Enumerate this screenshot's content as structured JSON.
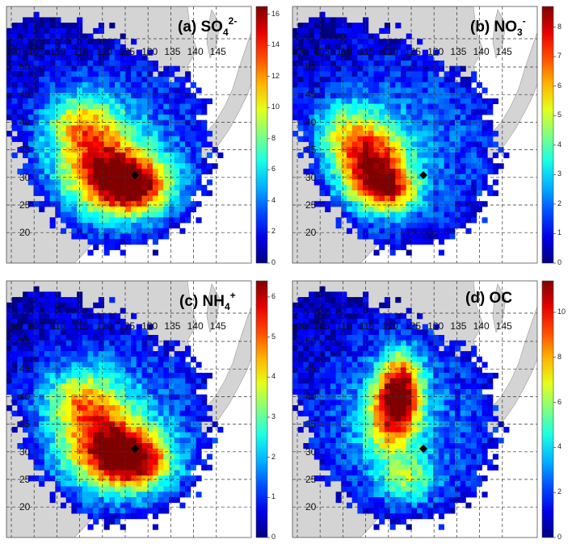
{
  "figure": {
    "longitudes": [
      "100",
      "105",
      "110",
      "115",
      "120",
      "125",
      "130",
      "135",
      "140",
      "145"
    ],
    "latitudes": [
      "50",
      "45",
      "40",
      "35",
      "30",
      "25",
      "20"
    ],
    "site_marker": "black-dot"
  },
  "panels": [
    {
      "id": "a",
      "prefix": "(a) ",
      "species": "SO",
      "sub": "4",
      "sup": "2-",
      "colorbar_ticks": [
        "16",
        "14",
        "12",
        "10",
        "8",
        "6",
        "4",
        "2",
        "0"
      ],
      "colorbar_max": 16.5,
      "hotspot": "south"
    },
    {
      "id": "b",
      "prefix": "(b) ",
      "species": "NO",
      "sub": "3",
      "sup": "-",
      "colorbar_ticks": [
        "8",
        "7",
        "6",
        "5",
        "4",
        "3",
        "2",
        "1",
        "0"
      ],
      "colorbar_max": 8.7,
      "hotspot": "west"
    },
    {
      "id": "c",
      "prefix": "(c) ",
      "species": "NH",
      "sub": "4",
      "sup": "+",
      "colorbar_ticks": [
        "6",
        "5",
        "4",
        "3",
        "2",
        "1",
        "0"
      ],
      "colorbar_max": 6.4,
      "hotspot": "south"
    },
    {
      "id": "d",
      "prefix": "(d) ",
      "species": "OC",
      "sub": "",
      "sup": "",
      "colorbar_ticks": [
        "10",
        "8",
        "6",
        "4",
        "2",
        "0"
      ],
      "colorbar_max": 11.4,
      "hotspot": "north"
    }
  ]
}
